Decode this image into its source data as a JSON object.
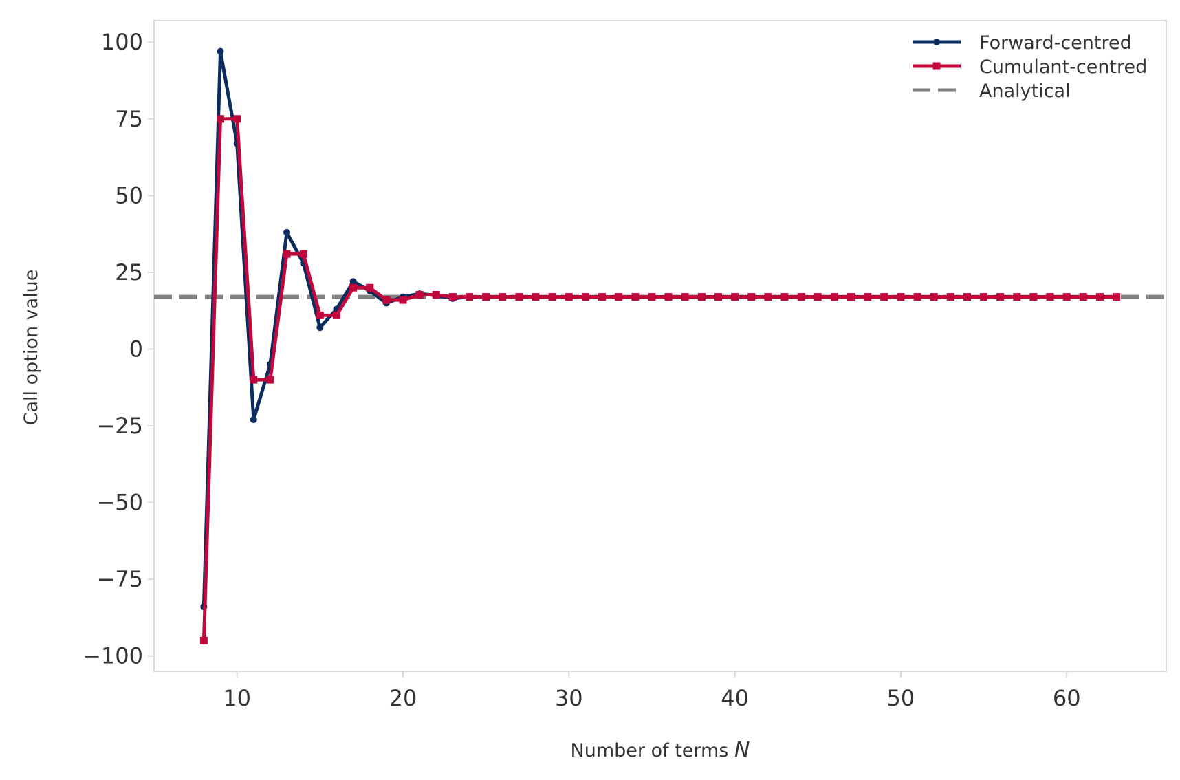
{
  "chart_data": {
    "type": "line",
    "xlabel": "Number of terms N",
    "xlabel_text": "Number of terms ",
    "xlabel_var": "N",
    "ylabel": "Call option value",
    "xlim": [
      5,
      66
    ],
    "ylim": [
      -105,
      107
    ],
    "xticks": [
      10,
      20,
      30,
      40,
      50,
      60
    ],
    "yticks": [
      100,
      75,
      50,
      25,
      0,
      -25,
      -50,
      -75,
      -100
    ],
    "ytick_labels": [
      "100",
      "75",
      "50",
      "25",
      "0",
      "−25",
      "−50",
      "−75",
      "−100"
    ],
    "legend_position": "top-right",
    "x": [
      8,
      9,
      10,
      11,
      12,
      13,
      14,
      15,
      16,
      17,
      18,
      19,
      20,
      21,
      22,
      23,
      24,
      25,
      26,
      27,
      28,
      29,
      30,
      31,
      32,
      33,
      34,
      35,
      36,
      37,
      38,
      39,
      40,
      41,
      42,
      43,
      44,
      45,
      46,
      47,
      48,
      49,
      50,
      51,
      52,
      53,
      54,
      55,
      56,
      57,
      58,
      59,
      60,
      61,
      62,
      63
    ],
    "series": [
      {
        "name": "Forward-centred",
        "color": "#0b2d5e",
        "marker": "circle",
        "values": [
          -84,
          97,
          67,
          -23,
          -5,
          38,
          28,
          7,
          13,
          22,
          19,
          15,
          17,
          18,
          17.5,
          16.5,
          17,
          17,
          17,
          17,
          17,
          17,
          17,
          17,
          17,
          17,
          17,
          17,
          17,
          17,
          17,
          17,
          17,
          17,
          17,
          17,
          17,
          17,
          17,
          17,
          17,
          17,
          17,
          17,
          17,
          17,
          17,
          17,
          17,
          17,
          17,
          17,
          17,
          17,
          17,
          17
        ]
      },
      {
        "name": "Cumulant-centred",
        "color": "#c0083c",
        "marker": "square",
        "values": [
          -95,
          75,
          75,
          -10,
          -10,
          31,
          31,
          11,
          11,
          20,
          20,
          16,
          16,
          17.7,
          17.7,
          17,
          17,
          17,
          17,
          17,
          17,
          17,
          17,
          17,
          17,
          17,
          17,
          17,
          17,
          17,
          17,
          17,
          17,
          17,
          17,
          17,
          17,
          17,
          17,
          17,
          17,
          17,
          17,
          17,
          17,
          17,
          17,
          17,
          17,
          17,
          17,
          17,
          17,
          17,
          17,
          17
        ]
      }
    ],
    "reference": {
      "name": "Analytical",
      "color": "#808080",
      "style": "dashed",
      "value": 17
    },
    "colors": {
      "frame": "#d9d9d9",
      "text": "#333333"
    }
  }
}
